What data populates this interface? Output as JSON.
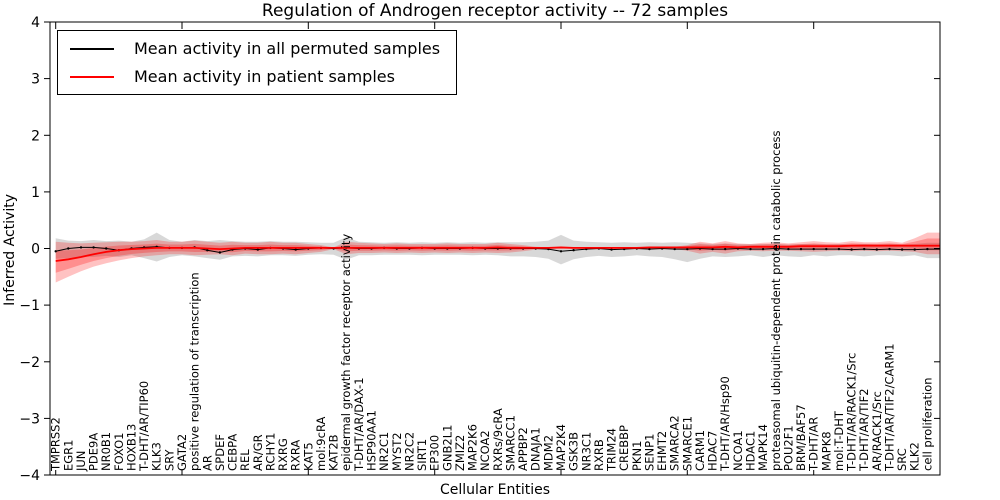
{
  "figure": {
    "title": "Regulation of Androgen receptor activity -- 72 samples",
    "xlabel": "Cellular Entities",
    "ylabel": "Inferred Activity",
    "samples": 72,
    "background": "#ffffff"
  },
  "legend": {
    "position": "upper left",
    "items": [
      {
        "label": "Mean activity in all permuted samples",
        "color": "#000000"
      },
      {
        "label": "Mean activity in patient samples",
        "color": "#ff0000"
      }
    ]
  },
  "chart_data": {
    "type": "line",
    "title": "Regulation of Androgen receptor activity -- 72 samples",
    "xlabel": "Cellular Entities",
    "ylabel": "Inferred Activity",
    "ylim": [
      -4,
      4
    ],
    "yticks": [
      4,
      3,
      2,
      1,
      0,
      -1,
      -2,
      -3,
      -4
    ],
    "ytick_labels": [
      "4",
      "3",
      "2",
      "1",
      "0",
      "−1",
      "−2",
      "−3",
      "−4"
    ],
    "x_major_ticks": [
      0,
      10,
      20,
      30,
      40,
      50,
      60,
      70
    ],
    "grid": false,
    "categories": [
      "TMPRSS2",
      "EGR1",
      "JUN",
      "PDE9A",
      "NR0B1",
      "FOXO1",
      "HOXB13",
      "T-DHT/AR/TIP60",
      "KLK3",
      "SRY",
      "GATA2",
      "positive regulation of transcription",
      "AR",
      "SPDEF",
      "CEBPA",
      "REL",
      "AR/GR",
      "RCHY1",
      "RXRG",
      "RXRA",
      "KAT5",
      "mol:9cRA",
      "KAT2B",
      "epidermal growth factor receptor activity",
      "T-DHT/AR/DAX-1",
      "HSP90AA1",
      "NR2C1",
      "MYST2",
      "NR2C2",
      "SIRT1",
      "EP300",
      "GNB2L1",
      "ZMIZ2",
      "MAP2K6",
      "NCOA2",
      "RXRs/9cRA",
      "SMARCC1",
      "APPBP2",
      "DNAJA1",
      "MDM2",
      "MAP2K4",
      "GSK3B",
      "NR3C1",
      "RXRB",
      "TRIM24",
      "CREBBP",
      "PKN1",
      "SENP1",
      "EHMT2",
      "SMARCA2",
      "SMARCE1",
      "CARM1",
      "HDAC7",
      "T-DHT/AR/Hsp90",
      "NCOA1",
      "HDAC1",
      "MAPK14",
      "proteasomal ubiquitin-dependent protein catabolic process",
      "POU2F1",
      "BRM/BAF57",
      "T-DHT/AR",
      "MAPK8",
      "mol:T-DHT",
      "T-DHT/AR/RACK1/Src",
      "T-DHT/AR/TIF2",
      "AR/RACK1/Src",
      "T-DHT/AR/TIF2/CARM1",
      "SRC",
      "KLK2",
      "cell proliferation"
    ],
    "series": [
      {
        "name": "Mean activity in all permuted samples",
        "color": "#000000",
        "values": [
          -0.05,
          0.0,
          0.02,
          0.02,
          0.0,
          -0.03,
          0.0,
          0.02,
          0.03,
          0.01,
          0.01,
          0.02,
          -0.03,
          -0.07,
          -0.02,
          0.0,
          -0.02,
          0.01,
          0.0,
          -0.02,
          0.0,
          0.01,
          0.0,
          0.01,
          0.0,
          0.0,
          0.01,
          0.0,
          0.0,
          0.01,
          0.0,
          0.0,
          0.0,
          0.01,
          0.0,
          0.0,
          0.0,
          0.0,
          0.0,
          -0.01,
          -0.05,
          -0.03,
          -0.01,
          0.0,
          -0.02,
          -0.01,
          0.0,
          -0.01,
          0.0,
          -0.01,
          -0.01,
          0.0,
          -0.01,
          -0.01,
          0.0,
          -0.01,
          -0.01,
          0.0,
          -0.01,
          -0.01,
          -0.01,
          -0.01,
          -0.01,
          -0.02,
          -0.01,
          -0.02,
          -0.01,
          -0.02,
          -0.02,
          -0.01
        ]
      },
      {
        "name": "Mean activity in patient samples",
        "color": "#ff0000",
        "values": [
          -0.22,
          -0.19,
          -0.15,
          -0.1,
          -0.06,
          -0.03,
          -0.01,
          0.0,
          0.01,
          0.01,
          0.01,
          0.01,
          0.0,
          -0.01,
          0.0,
          0.01,
          0.01,
          0.01,
          0.01,
          0.01,
          0.01,
          0.01,
          0.01,
          0.01,
          0.01,
          0.01,
          0.01,
          0.01,
          0.01,
          0.01,
          0.01,
          0.01,
          0.01,
          0.01,
          0.01,
          0.02,
          0.01,
          0.01,
          0.01,
          0.01,
          0.02,
          0.01,
          0.01,
          0.01,
          0.01,
          0.01,
          0.01,
          0.02,
          0.02,
          0.02,
          0.02,
          0.02,
          0.02,
          0.03,
          0.02,
          0.03,
          0.03,
          0.03,
          0.03,
          0.04,
          0.04,
          0.04,
          0.04,
          0.05,
          0.05,
          0.05,
          0.05,
          0.05,
          0.05,
          0.05
        ]
      }
    ],
    "bands": [
      {
        "name": "permuted-samples-range",
        "color": "#999999",
        "opacity": 0.38,
        "upper": [
          0.18,
          0.14,
          0.13,
          0.15,
          0.13,
          0.14,
          0.12,
          0.16,
          0.28,
          0.15,
          0.12,
          0.15,
          0.13,
          0.15,
          0.13,
          0.12,
          0.12,
          0.13,
          0.12,
          0.12,
          0.11,
          0.1,
          0.1,
          0.2,
          0.12,
          0.11,
          0.1,
          0.11,
          0.1,
          0.11,
          0.1,
          0.11,
          0.1,
          0.11,
          0.1,
          0.11,
          0.11,
          0.11,
          0.12,
          0.14,
          0.24,
          0.14,
          0.12,
          0.11,
          0.1,
          0.11,
          0.1,
          0.11,
          0.1,
          0.11,
          0.1,
          0.09,
          0.08,
          0.09,
          0.08,
          0.08,
          0.08,
          0.08,
          0.07,
          0.08,
          0.08,
          0.07,
          0.08,
          0.07,
          0.08,
          0.07,
          0.08,
          0.07,
          0.08,
          0.1
        ],
        "lower": [
          -0.18,
          -0.17,
          -0.14,
          -0.15,
          -0.13,
          -0.15,
          -0.12,
          -0.17,
          -0.23,
          -0.15,
          -0.12,
          -0.14,
          -0.17,
          -0.2,
          -0.14,
          -0.13,
          -0.14,
          -0.12,
          -0.12,
          -0.13,
          -0.11,
          -0.1,
          -0.11,
          -0.2,
          -0.12,
          -0.12,
          -0.11,
          -0.11,
          -0.11,
          -0.12,
          -0.11,
          -0.11,
          -0.11,
          -0.12,
          -0.11,
          -0.12,
          -0.14,
          -0.14,
          -0.15,
          -0.18,
          -0.28,
          -0.19,
          -0.15,
          -0.13,
          -0.15,
          -0.14,
          -0.12,
          -0.14,
          -0.15,
          -0.19,
          -0.24,
          -0.18,
          -0.14,
          -0.15,
          -0.14,
          -0.12,
          -0.15,
          -0.12,
          -0.14,
          -0.15,
          -0.12,
          -0.14,
          -0.12,
          -0.12,
          -0.14,
          -0.12,
          -0.12,
          -0.14,
          -0.12,
          -0.17
        ]
      },
      {
        "name": "patient-samples-range",
        "color": "#ff0000",
        "opacity": 0.24,
        "upper": [
          0.12,
          0.1,
          0.09,
          0.1,
          0.11,
          0.12,
          0.12,
          0.13,
          0.15,
          0.12,
          0.12,
          0.14,
          0.12,
          0.1,
          0.12,
          0.1,
          0.1,
          0.12,
          0.1,
          0.1,
          0.08,
          0.06,
          0.02,
          0.12,
          0.1,
          0.09,
          0.08,
          0.09,
          0.08,
          0.08,
          0.08,
          0.09,
          0.08,
          0.08,
          0.08,
          0.1,
          0.08,
          0.06,
          0.03,
          0.02,
          0.03,
          0.02,
          0.02,
          0.02,
          0.02,
          0.02,
          0.02,
          0.02,
          0.02,
          0.03,
          0.06,
          0.12,
          0.09,
          0.13,
          0.09,
          0.08,
          0.1,
          0.11,
          0.09,
          0.11,
          0.13,
          0.11,
          0.1,
          0.13,
          0.11,
          0.11,
          0.13,
          0.1,
          0.18,
          0.28
        ],
        "lower": [
          -0.6,
          -0.5,
          -0.4,
          -0.32,
          -0.26,
          -0.21,
          -0.17,
          -0.14,
          -0.12,
          -0.1,
          -0.1,
          -0.12,
          -0.11,
          -0.1,
          -0.12,
          -0.09,
          -0.1,
          -0.1,
          -0.09,
          -0.1,
          -0.08,
          -0.06,
          -0.01,
          -0.1,
          -0.08,
          -0.08,
          -0.07,
          -0.08,
          -0.07,
          -0.08,
          -0.07,
          -0.08,
          -0.07,
          -0.08,
          -0.07,
          -0.08,
          -0.07,
          -0.05,
          -0.02,
          -0.01,
          -0.01,
          -0.01,
          -0.01,
          -0.01,
          -0.01,
          -0.01,
          -0.01,
          -0.01,
          -0.01,
          -0.01,
          -0.04,
          -0.09,
          -0.06,
          -0.09,
          -0.05,
          -0.04,
          -0.05,
          -0.04,
          -0.04,
          -0.05,
          -0.06,
          -0.05,
          -0.04,
          -0.05,
          -0.04,
          -0.05,
          -0.04,
          -0.05,
          -0.06,
          -0.1
        ]
      }
    ]
  }
}
